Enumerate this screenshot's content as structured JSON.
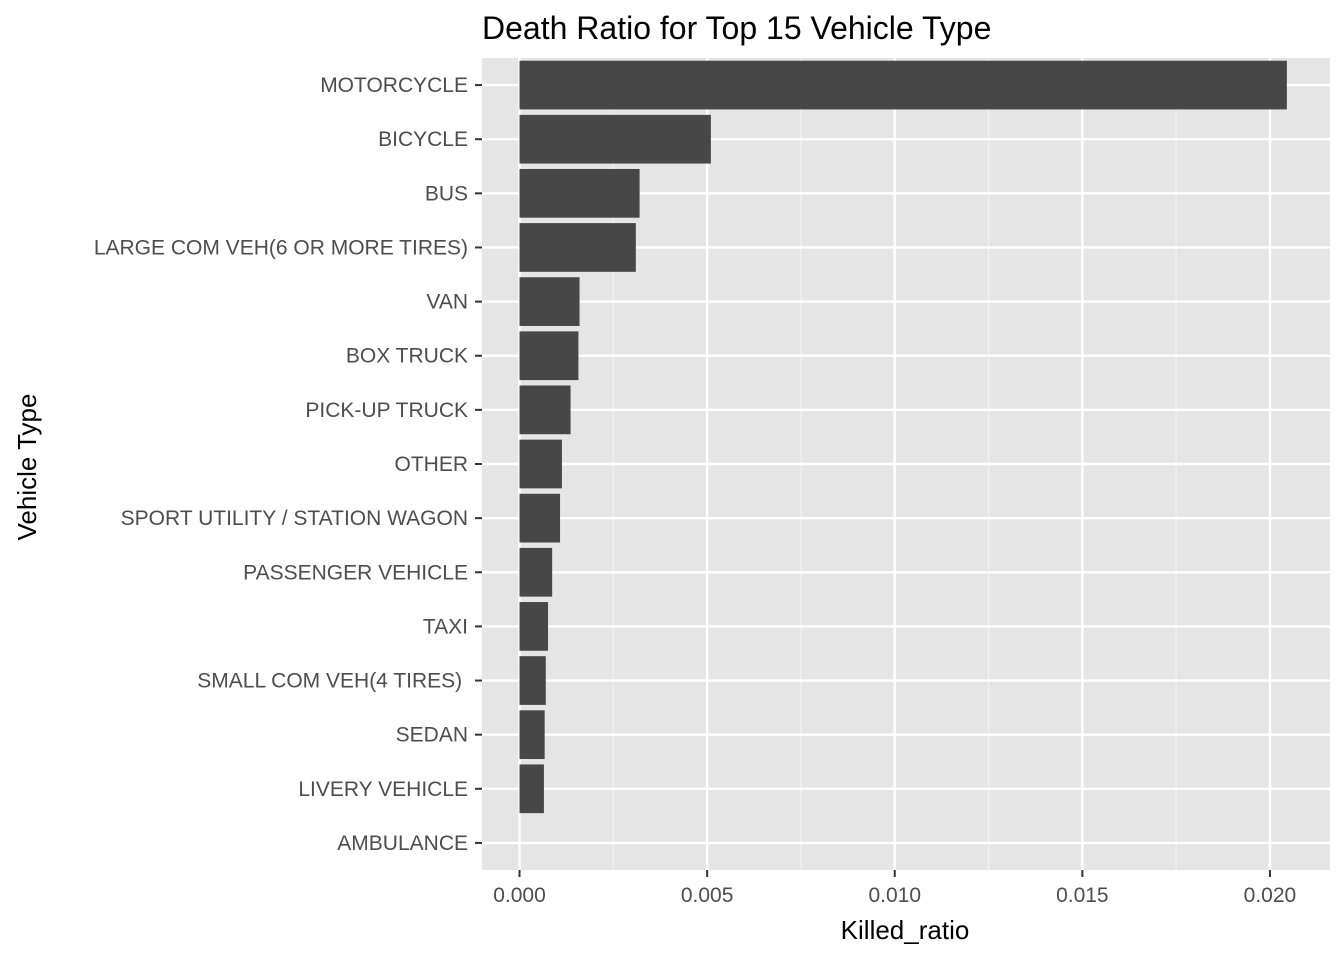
{
  "chart_data": {
    "type": "bar",
    "orientation": "horizontal",
    "title": "Death Ratio for Top 15 Vehicle Type",
    "xlabel": "Killed_ratio",
    "ylabel": "Vehicle Type",
    "categories": [
      "MOTORCYCLE",
      "BICYCLE",
      "BUS",
      "LARGE COM VEH(6 OR MORE TIRES)",
      "VAN",
      "BOX TRUCK",
      "PICK-UP TRUCK",
      "OTHER",
      "SPORT UTILITY / STATION WAGON",
      "PASSENGER VEHICLE",
      "TAXI",
      "SMALL COM VEH(4 TIRES) ",
      "SEDAN",
      "LIVERY VEHICLE",
      "AMBULANCE"
    ],
    "values": [
      0.02045,
      0.0051,
      0.0032,
      0.0031,
      0.0016,
      0.00157,
      0.00136,
      0.00113,
      0.00108,
      0.00087,
      0.00076,
      0.0007,
      0.00067,
      0.00065,
      0.0
    ],
    "xlim": [
      -0.001,
      0.0216
    ],
    "xticks": [
      0.0,
      0.005,
      0.01,
      0.015,
      0.02
    ],
    "xtick_labels": [
      "0.000",
      "0.005",
      "0.010",
      "0.015",
      "0.020"
    ],
    "grid": true,
    "legend": "none",
    "colors": {
      "bar": "#474747",
      "panel": "#e5e5e5",
      "grid_major": "#ffffff",
      "grid_minor": "#f2f2f2",
      "tick_text": "#4d4d4d",
      "tick_mark": "#333333"
    }
  }
}
